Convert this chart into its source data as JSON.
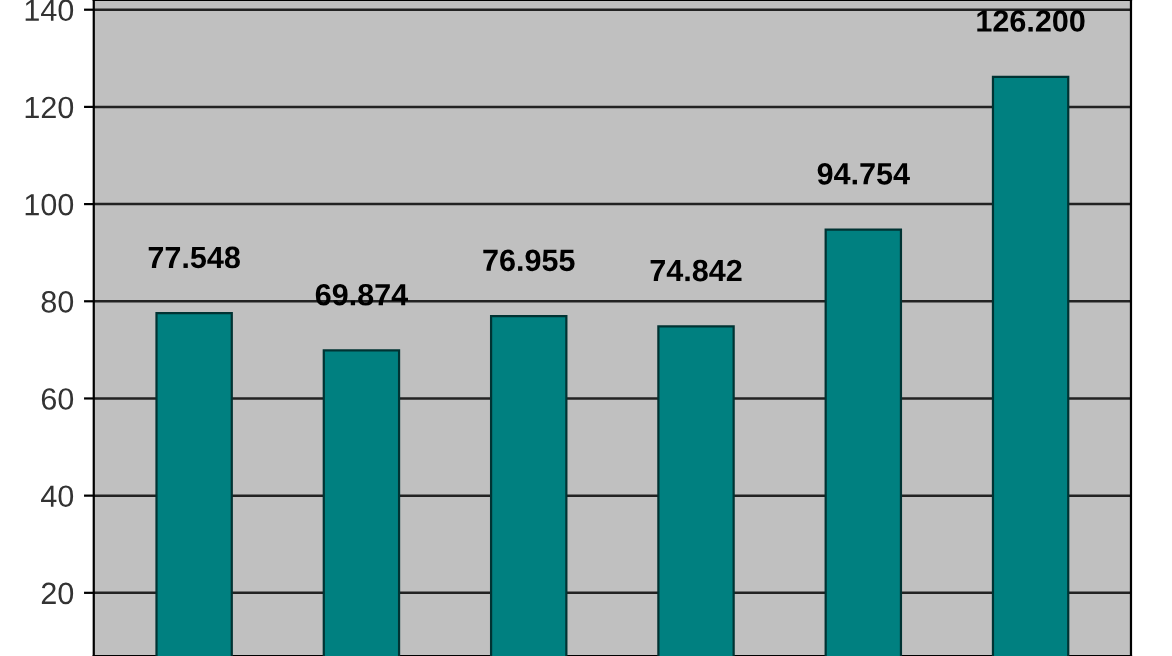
{
  "chart_data": {
    "type": "bar",
    "categories": [
      null,
      null,
      null,
      null,
      null,
      null
    ],
    "values": [
      77.548,
      69.874,
      76.955,
      74.842,
      94.754,
      126.2
    ],
    "value_labels": [
      "77.548",
      "69.874",
      "76.955",
      "74.842",
      "94.754",
      "126.200"
    ],
    "color": "#008080",
    "ylim": [
      7,
      142
    ],
    "yticks": [
      20,
      40,
      60,
      80,
      100,
      120,
      140
    ],
    "grid": "y",
    "tick_labels": "y"
  }
}
